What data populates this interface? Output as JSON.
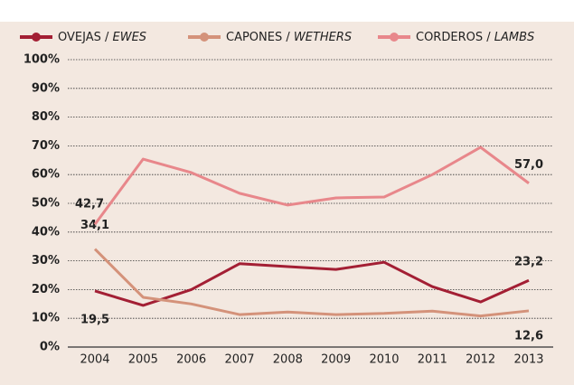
{
  "chart_data": {
    "type": "line",
    "categories": [
      "2004",
      "2005",
      "2006",
      "2007",
      "2008",
      "2009",
      "2010",
      "2011",
      "2012",
      "2013"
    ],
    "series": [
      {
        "name": "OVEJAS / EWES",
        "color": "#a31f34",
        "values": [
          19.5,
          14.5,
          20,
          29,
          28,
          27,
          29.5,
          21,
          15.7,
          23.2
        ],
        "value_labels": [
          "19,5",
          null,
          null,
          null,
          null,
          null,
          null,
          null,
          null,
          "23,2"
        ]
      },
      {
        "name": "CAPONES / WETHERS",
        "color": "#d4927a",
        "values": [
          34.1,
          17.3,
          15,
          11.3,
          12.2,
          11.3,
          11.7,
          12.5,
          10.8,
          12.6
        ],
        "value_labels": [
          "34,1",
          null,
          null,
          null,
          null,
          null,
          null,
          null,
          null,
          "12,6"
        ]
      },
      {
        "name": "CORDEROS / LAMBS",
        "color": "#e8878b",
        "values": [
          42.7,
          65.4,
          60.7,
          53.5,
          49.4,
          51.9,
          52.2,
          60,
          69.5,
          57.0
        ],
        "value_labels": [
          "42,7",
          null,
          null,
          null,
          null,
          null,
          null,
          null,
          null,
          "57,0"
        ]
      }
    ],
    "ylim": [
      0,
      100
    ],
    "yticks": [
      {
        "value": 0,
        "label": "0%"
      },
      {
        "value": 10,
        "label": "10%"
      },
      {
        "value": 20,
        "label": "20%"
      },
      {
        "value": 30,
        "label": "30%"
      },
      {
        "value": 40,
        "label": "40%"
      },
      {
        "value": 50,
        "label": "50%"
      },
      {
        "value": 60,
        "label": "60%"
      },
      {
        "value": 70,
        "label": "70%"
      },
      {
        "value": 80,
        "label": "80%"
      },
      {
        "value": 90,
        "label": "90%"
      },
      {
        "value": 100,
        "label": "100%"
      }
    ],
    "grid": true,
    "legend": "top"
  }
}
